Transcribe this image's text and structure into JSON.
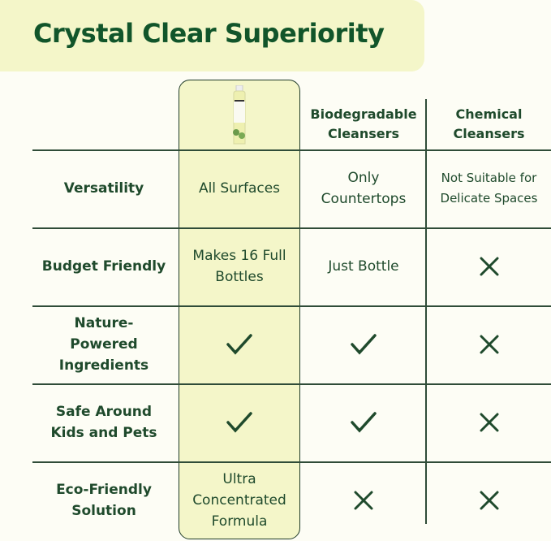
{
  "title": "Crystal Clear Superiority",
  "columns": [
    {
      "label": "",
      "icon": "product-bottle-image"
    },
    {
      "label": "Biodegradable Cleansers"
    },
    {
      "label": "Chemical Cleansers"
    }
  ],
  "rows": [
    {
      "label": "Versatility",
      "values": [
        "All Surfaces",
        "Only Countertops",
        "Not Suitable for Delicate Spaces"
      ]
    },
    {
      "label": "Budget Friendly",
      "values": [
        "Makes 16 Full Bottles",
        "Just Bottle",
        "cross"
      ]
    },
    {
      "label": "Nature-Powered Ingredients",
      "values": [
        "check",
        "check",
        "cross"
      ]
    },
    {
      "label": "Safe Around Kids and Pets",
      "values": [
        "check",
        "check",
        "cross"
      ]
    },
    {
      "label": "Eco-Friendly Solution",
      "values": [
        "Ultra Concentrated Formula",
        "cross",
        "cross"
      ]
    }
  ],
  "colors": {
    "accent": "#f4f6c9",
    "text": "#1f4a2c",
    "title": "#11552a"
  }
}
